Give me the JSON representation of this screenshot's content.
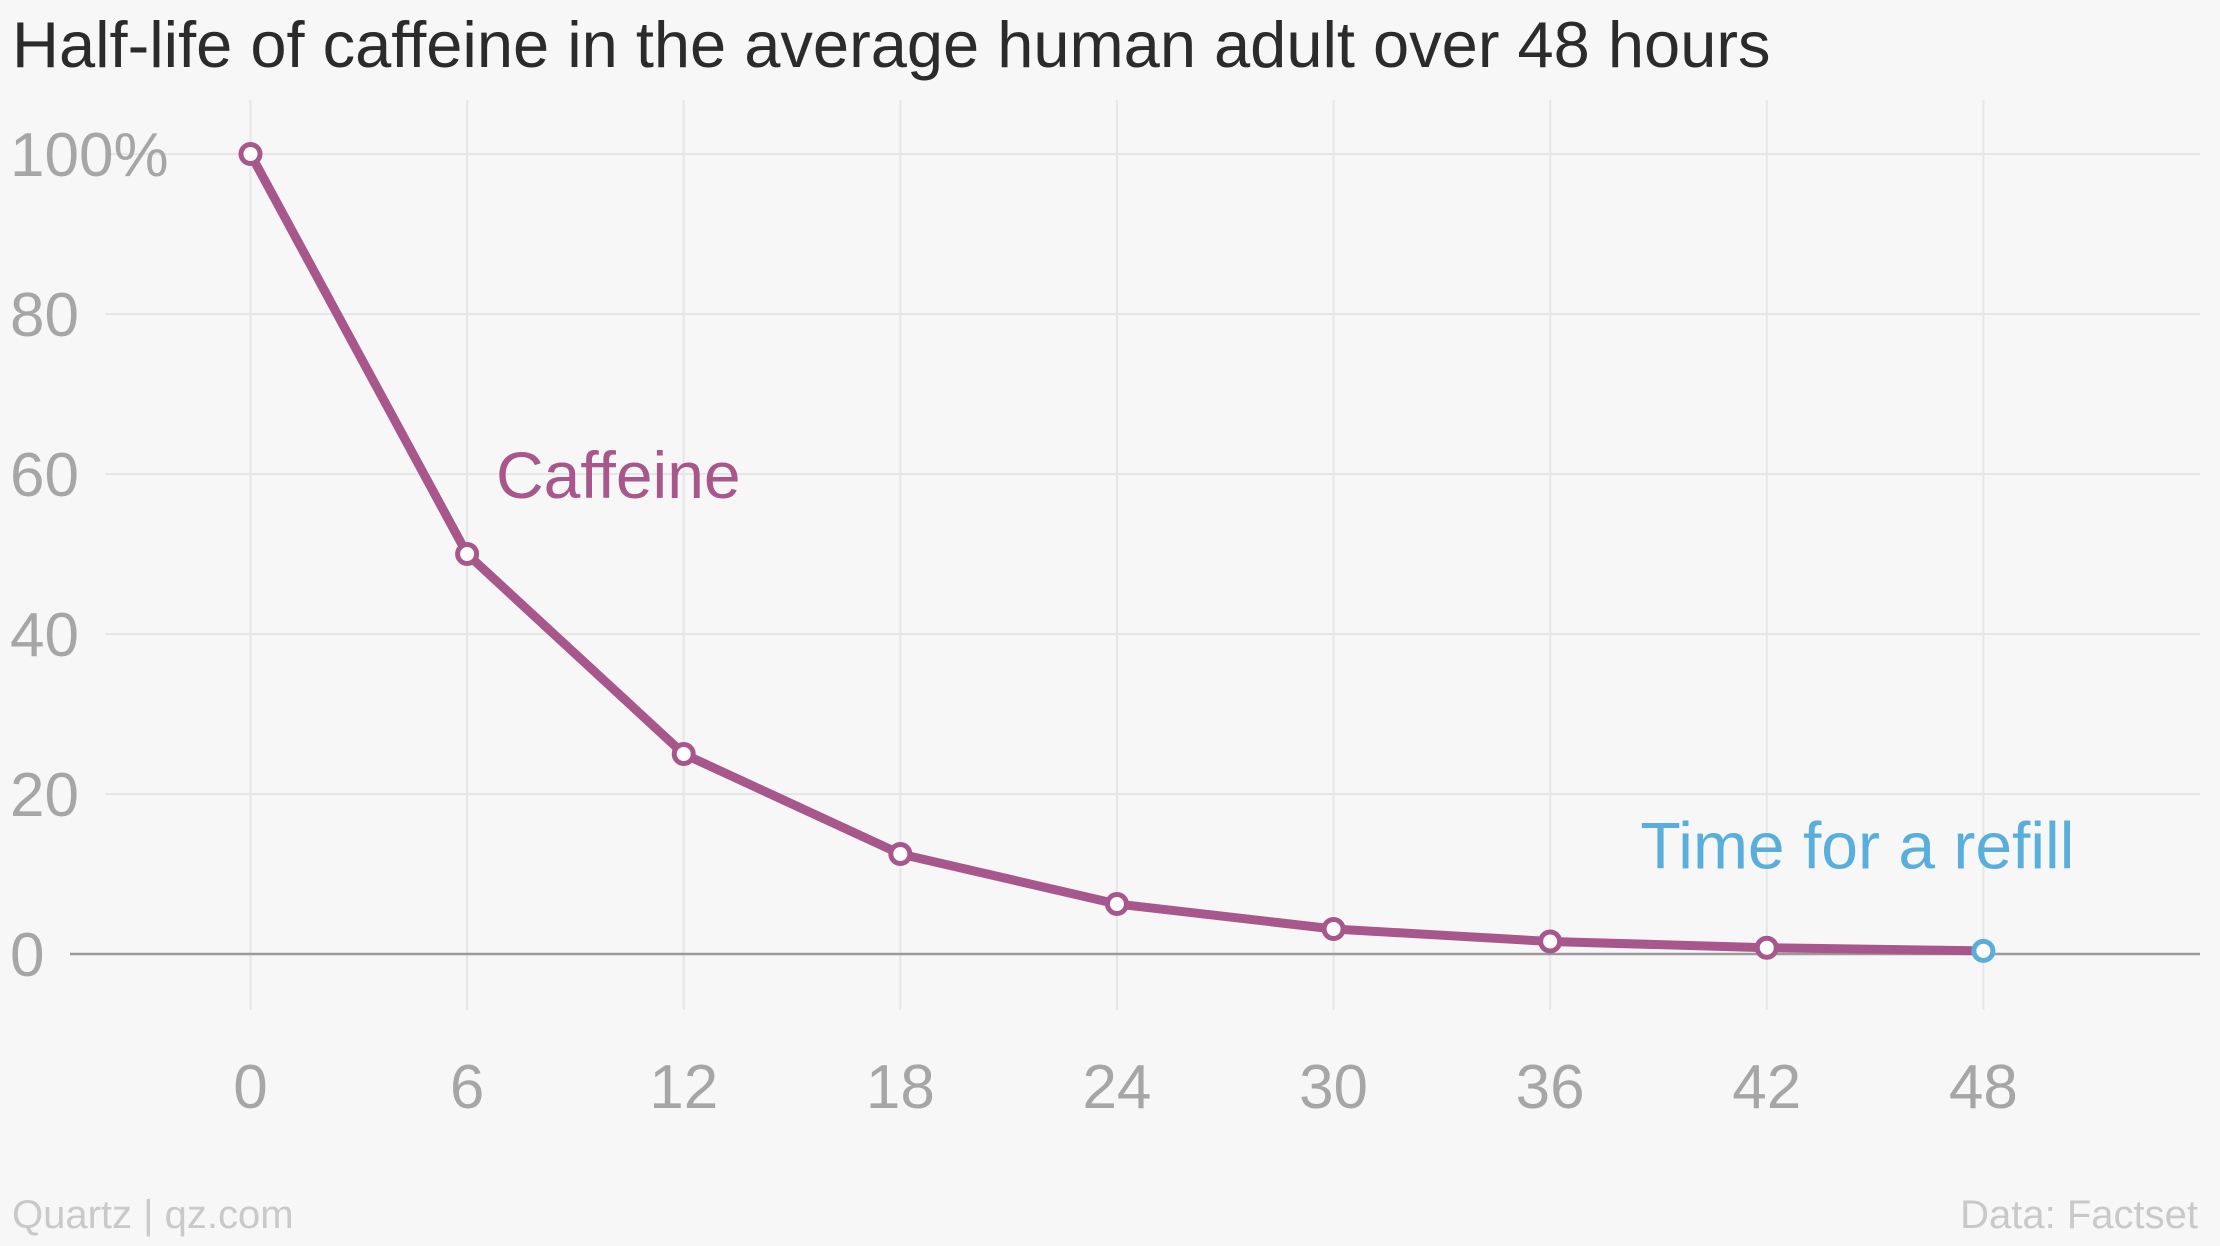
{
  "title": "Half-life of caffeine in the average human adult over 48 hours",
  "footer": {
    "source_left": "Quartz | qz.com",
    "source_right": "Data: Factset"
  },
  "colors": {
    "series": "#a8578c",
    "highlight": "#5aaedb",
    "grid": "#e6e6e6",
    "baseline": "#9a9a9a",
    "tick_text": "#a6a6a6"
  },
  "chart_data": {
    "type": "line",
    "title": "Half-life of caffeine in the average human adult over 48 hours",
    "xlabel": "",
    "ylabel": "",
    "x": [
      0,
      6,
      12,
      18,
      24,
      30,
      36,
      42,
      48
    ],
    "series": [
      {
        "name": "Caffeine",
        "values": [
          100,
          50,
          25,
          12.5,
          6.25,
          3.125,
          1.5625,
          0.78125,
          0.390625
        ]
      }
    ],
    "xlim": [
      -5,
      54
    ],
    "ylim": [
      -7,
      103
    ],
    "x_ticks": [
      0,
      6,
      12,
      18,
      24,
      30,
      36,
      42,
      48
    ],
    "x_tick_labels": [
      "0",
      "6",
      "12",
      "18",
      "24",
      "30",
      "36",
      "42",
      "48"
    ],
    "y_ticks": [
      0,
      20,
      40,
      60,
      80,
      100
    ],
    "y_tick_labels": [
      "0",
      "20",
      "40",
      "60",
      "80",
      "100%"
    ],
    "grid": true,
    "annotations": [
      {
        "text": "Caffeine",
        "x": 6.8,
        "y": 57,
        "style": "series"
      },
      {
        "text": "Time for a refill",
        "x": 38.5,
        "y": 10.7,
        "style": "highlight"
      }
    ],
    "highlighted_point": {
      "x": 48,
      "y": 0.390625
    }
  }
}
